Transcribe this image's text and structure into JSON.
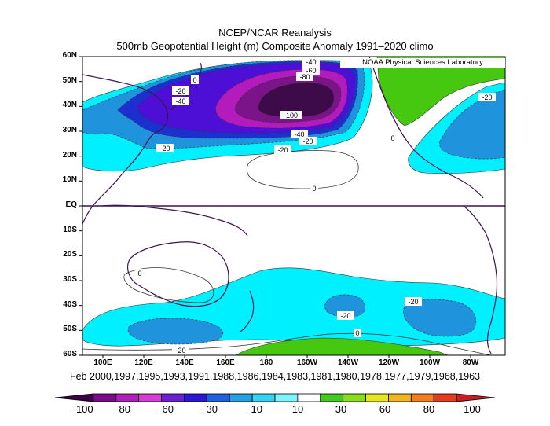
{
  "title_line1": "NCEP/NCAR Reanalysis",
  "title_line2": "500mb Geopotential Height (m) Composite Anomaly 1991–2020 climo",
  "credit": "NOAA Physical Sciences Laboratory",
  "caption": "Feb 2000,1997,1995,1993,1991,1988,1986,1984,1983,1981,1980,1978,1977,1979,1968,1963",
  "lat_labels": [
    "60N",
    "50N",
    "40N",
    "30N",
    "20N",
    "10N",
    "EQ",
    "10S",
    "20S",
    "30S",
    "40S",
    "50S",
    "60S"
  ],
  "lon_labels": [
    "100E",
    "120E",
    "140E",
    "160E",
    "180",
    "160W",
    "140W",
    "120W",
    "100W",
    "80W"
  ],
  "colorbar": {
    "labels": [
      "−100",
      "−80",
      "−60",
      "−30",
      "−10",
      "10",
      "30",
      "60",
      "80",
      "100"
    ],
    "colors": [
      "#3a0048",
      "#7a0a8a",
      "#b01cb8",
      "#d73ad6",
      "#6a1fd0",
      "#2b18d6",
      "#1e5fe0",
      "#23a0e6",
      "#36d0f0",
      "#7ff2ff",
      "#ffffff",
      "#42c81e",
      "#8adc1c",
      "#e6e61e",
      "#f2b41e",
      "#f07c1e",
      "#e23c1e",
      "#c81e1e"
    ]
  },
  "contour_labels": [
    "-40",
    "-60",
    "-80",
    "-100",
    "-40",
    "-20",
    "-20",
    "-40",
    "-20",
    "-20",
    "0",
    "0",
    "0",
    "0",
    "-20",
    "-20",
    "-20",
    "0",
    "-20"
  ],
  "map_colors": {
    "neg100": "#3d0a4a",
    "neg80": "#7a1488",
    "neg60": "#b31bbd",
    "neg40": "#4d0fd6",
    "neg30": "#1c2fcf",
    "neg20": "#1f94dc",
    "neg10": "#00f0ff",
    "pos10": "#45c80f",
    "land": "#3c1450"
  }
}
